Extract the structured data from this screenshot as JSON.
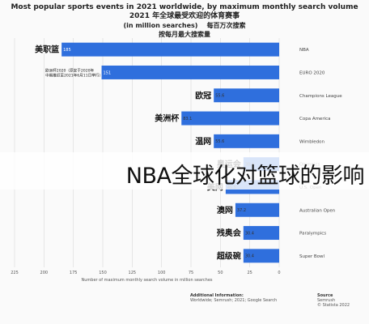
{
  "header": {
    "title_en_line1": "Most popular sports events in 2021 worldwide, by maximum monthly search volume",
    "title_en_line2": "(in million searches)",
    "title_zh_line1": "2021 年全球最受欢迎的体育赛事",
    "title_zh_line2": "每百万次搜索",
    "title_zh_line3": "按每月最大搜索量"
  },
  "overlay": {
    "text": "NBA全球化对篮球的影响"
  },
  "footer": {
    "left_head": "Additional Information:",
    "left_line1": "Worldwide; Semrush; 2021; Google Search",
    "right_head": "Source",
    "right_line1": "Semrush",
    "right_line2": "© Statista 2022"
  },
  "colors": {
    "bar": "#2f6fdd",
    "grid": "#d9d9d9",
    "axis_text": "#555555"
  },
  "chart_data": {
    "type": "bar",
    "orientation": "horizontal",
    "categories": [
      "NBA",
      "EURO 2020",
      "Champions League",
      "Copa America",
      "Wimbledon",
      "Olympics",
      "U.S. Open",
      "Australian Open",
      "Paralympics",
      "Super Bowl"
    ],
    "category_labels_zh": [
      "美职篮",
      "",
      "欧冠",
      "美洲杯",
      "温网",
      "奥运会",
      "美网",
      "澳网",
      "残奥会",
      "超级碗"
    ],
    "values": [
      185,
      151,
      55.6,
      83.1,
      55.6,
      30.4,
      45.5,
      37.2,
      30.4,
      30.4
    ],
    "value_labels": [
      "185",
      "151",
      "55.6",
      "83.1",
      "55.6",
      "30.4",
      "45.5",
      "37.2",
      "30.4",
      "30.4"
    ],
    "annotation_euro": {
      "line1": "欧洲杯2020（原定于2020年",
      "line2": "中期推迟至2021年6月11日举行）"
    },
    "xlim": [
      0,
      225
    ],
    "xticks": [
      225,
      200,
      175,
      150,
      125,
      100,
      75,
      50,
      25,
      0
    ],
    "xlabel": "Number of maximum monthly search volume in million searches",
    "axis_reversed": true,
    "grid": true
  }
}
